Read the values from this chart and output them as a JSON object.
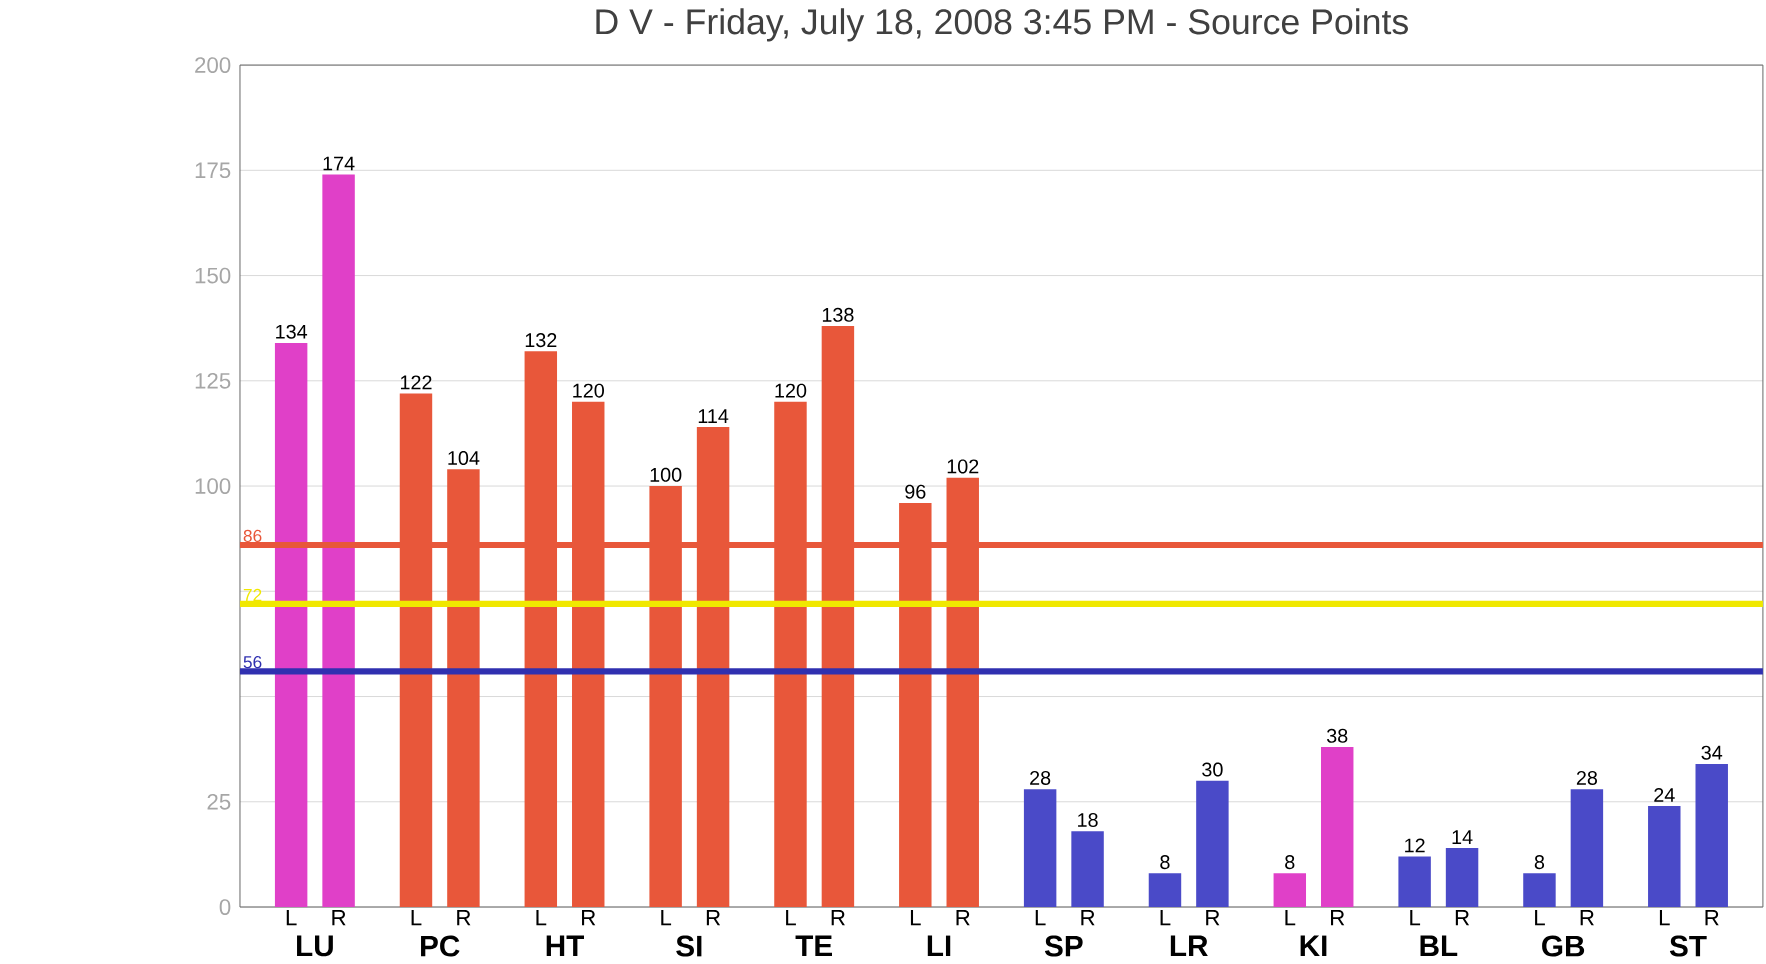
{
  "chart_data": {
    "type": "bar",
    "title": "D            V            - Friday, July 18, 2008 3:45 PM - Source Points",
    "categories": [
      "LU",
      "PC",
      "HT",
      "SI",
      "TE",
      "LI",
      "SP",
      "LR",
      "KI",
      "BL",
      "GB",
      "ST"
    ],
    "series": [
      {
        "name": "L",
        "values": [
          134,
          122,
          132,
          100,
          120,
          96,
          28,
          8,
          8,
          12,
          8,
          24
        ],
        "colors": [
          "#e040c8",
          "#e8573a",
          "#e8573a",
          "#e8573a",
          "#e8573a",
          "#e8573a",
          "#4a4ac8",
          "#4a4ac8",
          "#e040c8",
          "#4a4ac8",
          "#4a4ac8",
          "#4a4ac8"
        ]
      },
      {
        "name": "R",
        "values": [
          174,
          104,
          120,
          114,
          138,
          102,
          18,
          30,
          38,
          14,
          28,
          34
        ],
        "colors": [
          "#e040c8",
          "#e8573a",
          "#e8573a",
          "#e8573a",
          "#e8573a",
          "#e8573a",
          "#4a4ac8",
          "#4a4ac8",
          "#e040c8",
          "#4a4ac8",
          "#4a4ac8",
          "#4a4ac8"
        ]
      }
    ],
    "ylim": [
      0,
      200
    ],
    "yticks": [
      0,
      25,
      {
        "value": 50,
        "label": null
      },
      {
        "value": 75,
        "label": null
      },
      100,
      125,
      150,
      175,
      200
    ],
    "grid": "y",
    "data_labels": true,
    "ref_lines": [
      {
        "axis": "y",
        "value": 86,
        "label": "86",
        "color": "#e8573a"
      },
      {
        "axis": "y",
        "value": 72,
        "label": "72",
        "color": "#f0e800"
      },
      {
        "axis": "y",
        "value": 56,
        "label": "56",
        "color": "#3030b0"
      }
    ]
  }
}
